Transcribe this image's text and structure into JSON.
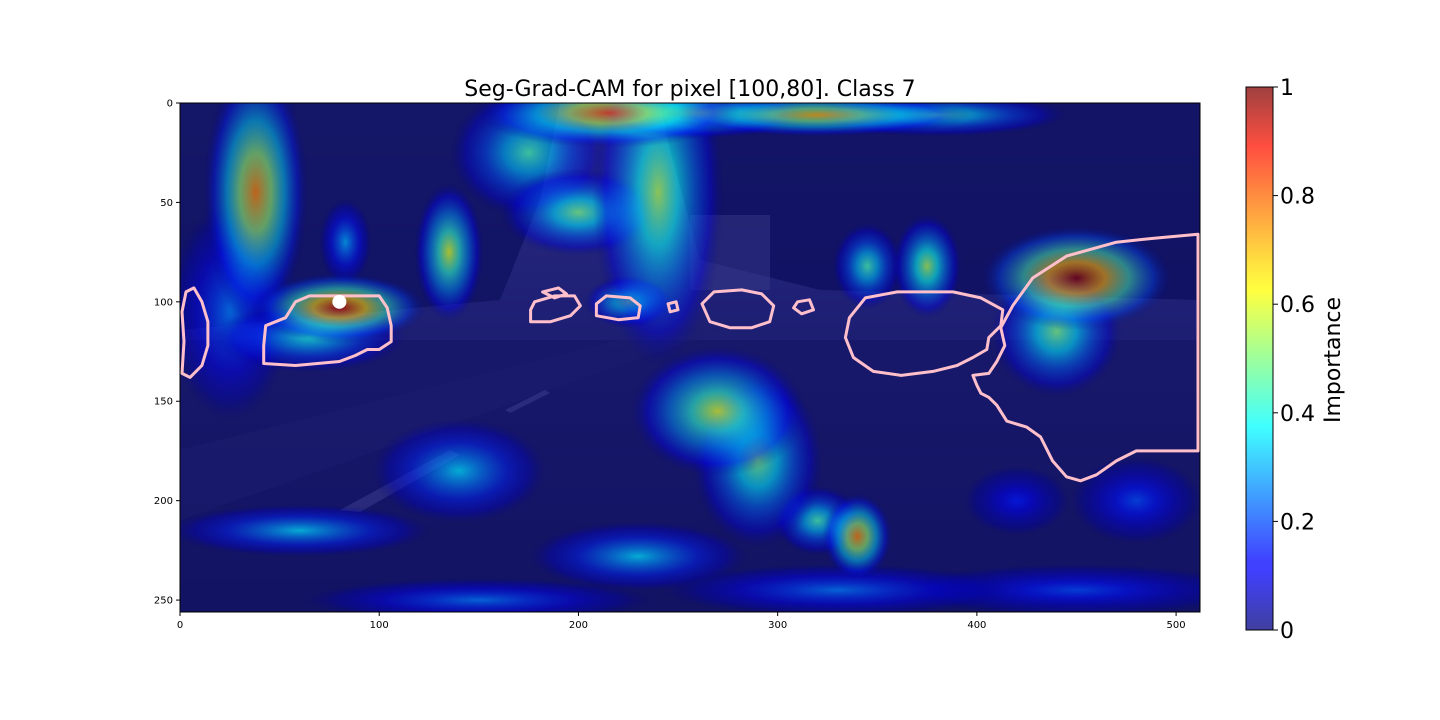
{
  "chart_data": {
    "type": "heatmap",
    "title": "Seg-Grad-CAM for pixel [100,80]. Class 7",
    "xlabel": "",
    "ylabel": "",
    "xlim": [
      0,
      512
    ],
    "ylim": [
      256,
      0
    ],
    "x_ticks": [
      "0",
      "100",
      "200",
      "300",
      "400",
      "500"
    ],
    "x_tick_values": [
      0,
      100,
      200,
      300,
      400,
      500
    ],
    "y_ticks": [
      "0",
      "50",
      "100",
      "150",
      "200",
      "250"
    ],
    "y_tick_values": [
      0,
      50,
      100,
      150,
      200,
      250
    ],
    "colormap": "jet",
    "overlay_alpha": 0.6,
    "selected_pixel": {
      "x": 80,
      "y": 100,
      "color": "#ffffff"
    },
    "outline_color": "#ffc0cb",
    "hotspots": [
      {
        "x": 38,
        "y": 45,
        "sx": 12,
        "sy": 30,
        "v": 0.75
      },
      {
        "x": 25,
        "y": 105,
        "sx": 14,
        "sy": 25,
        "v": 0.25
      },
      {
        "x": 80,
        "y": 103,
        "sx": 20,
        "sy": 8,
        "v": 0.95
      },
      {
        "x": 65,
        "y": 118,
        "sx": 22,
        "sy": 8,
        "v": 0.4
      },
      {
        "x": 135,
        "y": 75,
        "sx": 8,
        "sy": 16,
        "v": 0.6
      },
      {
        "x": 83,
        "y": 70,
        "sx": 6,
        "sy": 10,
        "v": 0.3
      },
      {
        "x": 215,
        "y": 5,
        "sx": 30,
        "sy": 8,
        "v": 0.8
      },
      {
        "x": 260,
        "y": 5,
        "sx": 25,
        "sy": 6,
        "v": 0.6
      },
      {
        "x": 320,
        "y": 6,
        "sx": 35,
        "sy": 5,
        "v": 0.7
      },
      {
        "x": 380,
        "y": 6,
        "sx": 30,
        "sy": 5,
        "v": 0.45
      },
      {
        "x": 175,
        "y": 25,
        "sx": 18,
        "sy": 15,
        "v": 0.45
      },
      {
        "x": 240,
        "y": 45,
        "sx": 15,
        "sy": 40,
        "v": 0.55
      },
      {
        "x": 200,
        "y": 55,
        "sx": 18,
        "sy": 10,
        "v": 0.5
      },
      {
        "x": 225,
        "y": 100,
        "sx": 10,
        "sy": 6,
        "v": 0.5
      },
      {
        "x": 450,
        "y": 88,
        "sx": 22,
        "sy": 12,
        "v": 1.0
      },
      {
        "x": 440,
        "y": 115,
        "sx": 15,
        "sy": 15,
        "v": 0.5
      },
      {
        "x": 375,
        "y": 82,
        "sx": 8,
        "sy": 12,
        "v": 0.55
      },
      {
        "x": 345,
        "y": 82,
        "sx": 8,
        "sy": 10,
        "v": 0.45
      },
      {
        "x": 270,
        "y": 155,
        "sx": 20,
        "sy": 15,
        "v": 0.6
      },
      {
        "x": 290,
        "y": 180,
        "sx": 15,
        "sy": 20,
        "v": 0.5
      },
      {
        "x": 340,
        "y": 218,
        "sx": 8,
        "sy": 10,
        "v": 0.75
      },
      {
        "x": 320,
        "y": 210,
        "sx": 10,
        "sy": 8,
        "v": 0.45
      },
      {
        "x": 140,
        "y": 185,
        "sx": 20,
        "sy": 12,
        "v": 0.35
      },
      {
        "x": 60,
        "y": 215,
        "sx": 30,
        "sy": 6,
        "v": 0.35
      },
      {
        "x": 230,
        "y": 228,
        "sx": 25,
        "sy": 8,
        "v": 0.35
      },
      {
        "x": 330,
        "y": 245,
        "sx": 40,
        "sy": 6,
        "v": 0.25
      },
      {
        "x": 450,
        "y": 245,
        "sx": 40,
        "sy": 6,
        "v": 0.2
      },
      {
        "x": 150,
        "y": 250,
        "sx": 40,
        "sy": 5,
        "v": 0.25
      },
      {
        "x": 480,
        "y": 200,
        "sx": 15,
        "sy": 10,
        "v": 0.2
      },
      {
        "x": 420,
        "y": 200,
        "sx": 12,
        "sy": 8,
        "v": 0.15
      }
    ],
    "outlines": [
      [
        [
          3,
          95
        ],
        [
          7,
          93
        ],
        [
          11,
          100
        ],
        [
          14,
          110
        ],
        [
          14,
          122
        ],
        [
          11,
          132
        ],
        [
          5,
          138
        ],
        [
          1,
          136
        ],
        [
          2,
          120
        ],
        [
          1,
          105
        ]
      ],
      [
        [
          53,
          108
        ],
        [
          58,
          100
        ],
        [
          65,
          97
        ],
        [
          100,
          97
        ],
        [
          104,
          103
        ],
        [
          106,
          112
        ],
        [
          106,
          120
        ],
        [
          100,
          124
        ],
        [
          94,
          124
        ],
        [
          88,
          127
        ],
        [
          80,
          130
        ],
        [
          58,
          132
        ],
        [
          42,
          131
        ],
        [
          42,
          122
        ],
        [
          43,
          112
        ]
      ],
      [
        [
          176,
          104
        ],
        [
          178,
          100
        ],
        [
          188,
          97
        ],
        [
          198,
          97
        ],
        [
          201,
          102
        ],
        [
          196,
          107
        ],
        [
          186,
          110
        ],
        [
          176,
          110
        ]
      ],
      [
        [
          182,
          95
        ],
        [
          190,
          93
        ],
        [
          194,
          96
        ],
        [
          188,
          98
        ]
      ],
      [
        [
          209,
          101
        ],
        [
          214,
          97
        ],
        [
          226,
          98
        ],
        [
          231,
          102
        ],
        [
          230,
          108
        ],
        [
          220,
          109
        ],
        [
          209,
          107
        ]
      ],
      [
        [
          245,
          101
        ],
        [
          249,
          100
        ],
        [
          250,
          104
        ],
        [
          246,
          105
        ]
      ],
      [
        [
          262,
          101
        ],
        [
          268,
          95
        ],
        [
          282,
          94
        ],
        [
          292,
          96
        ],
        [
          298,
          102
        ],
        [
          296,
          110
        ],
        [
          287,
          113
        ],
        [
          276,
          113
        ],
        [
          266,
          110
        ]
      ],
      [
        [
          310,
          100
        ],
        [
          316,
          99
        ],
        [
          318,
          104
        ],
        [
          312,
          106
        ],
        [
          308,
          103
        ]
      ],
      [
        [
          336,
          108
        ],
        [
          344,
          98
        ],
        [
          360,
          95
        ],
        [
          388,
          95
        ],
        [
          402,
          98
        ],
        [
          413,
          104
        ],
        [
          412,
          112
        ],
        [
          406,
          118
        ],
        [
          405,
          124
        ],
        [
          398,
          128
        ],
        [
          390,
          132
        ],
        [
          378,
          135
        ],
        [
          362,
          137
        ],
        [
          348,
          135
        ],
        [
          338,
          128
        ],
        [
          334,
          118
        ]
      ],
      [
        [
          412,
          113
        ],
        [
          418,
          102
        ],
        [
          428,
          88
        ],
        [
          445,
          77
        ],
        [
          470,
          70
        ],
        [
          489,
          68
        ],
        [
          511,
          66
        ],
        [
          511,
          175
        ],
        [
          480,
          175
        ],
        [
          470,
          180
        ],
        [
          460,
          187
        ],
        [
          452,
          190
        ],
        [
          445,
          188
        ],
        [
          438,
          180
        ],
        [
          432,
          168
        ],
        [
          425,
          163
        ],
        [
          415,
          160
        ],
        [
          410,
          152
        ],
        [
          406,
          148
        ],
        [
          402,
          146
        ],
        [
          400,
          142
        ],
        [
          398,
          137
        ],
        [
          406,
          136
        ],
        [
          410,
          130
        ],
        [
          414,
          122
        ]
      ]
    ],
    "colorbar": {
      "label": "Importance",
      "ticks": [
        "0",
        "0.2",
        "0.4",
        "0.6",
        "0.8",
        "1"
      ],
      "tick_values": [
        0,
        0.2,
        0.4,
        0.6,
        0.8,
        1
      ]
    }
  }
}
